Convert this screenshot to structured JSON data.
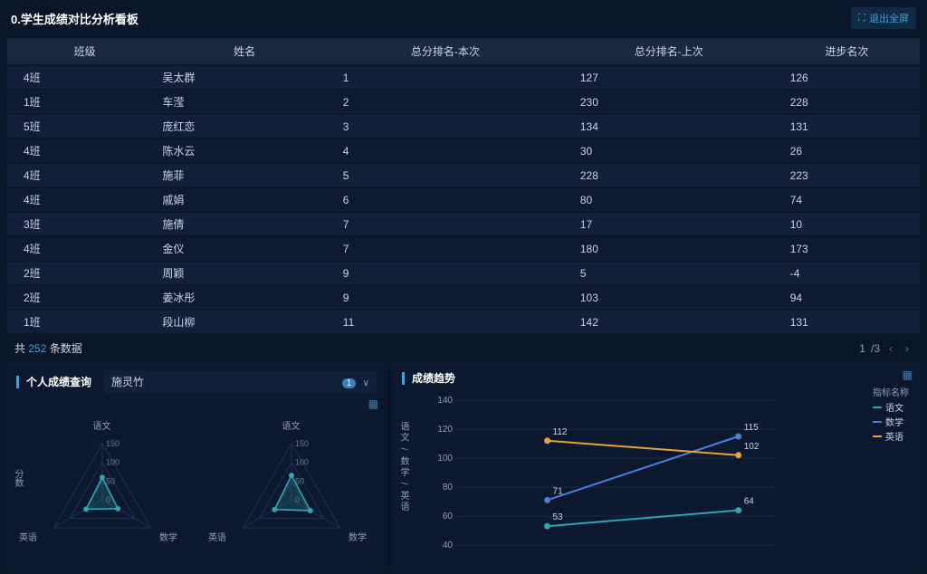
{
  "header": {
    "title": "0.学生成绩对比分析看板",
    "exit_label": "退出全屏"
  },
  "table": {
    "columns": [
      "班级",
      "姓名",
      "总分排名-本次",
      "总分排名-上次",
      "进步名次"
    ],
    "rows": [
      [
        "4班",
        "吴太群",
        "1",
        "127",
        "126"
      ],
      [
        "1班",
        "车滢",
        "2",
        "230",
        "228"
      ],
      [
        "5班",
        "庞红恋",
        "3",
        "134",
        "131"
      ],
      [
        "4班",
        "陈水云",
        "4",
        "30",
        "26"
      ],
      [
        "4班",
        "施菲",
        "5",
        "228",
        "223"
      ],
      [
        "4班",
        "戚娟",
        "6",
        "80",
        "74"
      ],
      [
        "3班",
        "施倩",
        "7",
        "17",
        "10"
      ],
      [
        "4班",
        "金仪",
        "7",
        "180",
        "173"
      ],
      [
        "2班",
        "周颖",
        "9",
        "5",
        "-4"
      ],
      [
        "2班",
        "姜冰彤",
        "9",
        "103",
        "94"
      ],
      [
        "1班",
        "段山柳",
        "11",
        "142",
        "131"
      ]
    ],
    "col_widths": [
      "17%",
      "18%",
      "26%",
      "23%",
      "16%"
    ],
    "header_bg": "#1a2940",
    "row_bg_odd": "#121f38",
    "row_bg_even": "#0f1a30"
  },
  "footer": {
    "count_prefix": "共 ",
    "count_value": "252",
    "count_suffix": " 条数据",
    "page_current": "1",
    "page_total": "/3"
  },
  "query_panel": {
    "title": "个人成绩查询",
    "selected": "施灵竹",
    "badge": "1",
    "y_axis_label": "分数"
  },
  "radar": {
    "axes": [
      "语文",
      "数学",
      "英语"
    ],
    "rings": [
      0,
      50,
      100,
      150
    ],
    "ring_color": "#1f3350",
    "left": {
      "values": [
        60,
        48,
        50
      ],
      "stroke": "#2fa5b0",
      "fill": "rgba(47,165,176,0.22)"
    },
    "right": {
      "values": [
        65,
        58,
        52
      ],
      "stroke": "#2fa5b0",
      "fill": "rgba(47,165,176,0.22)"
    },
    "label_color": "#8aa0bf",
    "tick_color": "#6a7c98"
  },
  "trend_panel": {
    "title": "成绩趋势",
    "legend_title": "指标名称",
    "series": [
      {
        "name": "语文",
        "color": "#2fa5b0",
        "points": [
          53,
          64
        ]
      },
      {
        "name": "数学",
        "color": "#4a7fd6",
        "points": [
          71,
          115
        ]
      },
      {
        "name": "英语",
        "color": "#e6a23c",
        "points": [
          112,
          102
        ]
      }
    ],
    "y_ticks": [
      40,
      60,
      80,
      100,
      120,
      140
    ],
    "y_min": 40,
    "y_max": 140,
    "y_axis_title": "语文 / 数学 / 英语",
    "grid_color": "#1a2a42",
    "axis_color": "#2a3c58",
    "point_labels": [
      [
        "53",
        "64"
      ],
      [
        "71",
        "115"
      ],
      [
        "112",
        "102"
      ]
    ]
  },
  "colors": {
    "background": "#0a1528",
    "panel_bg": "#0c182d",
    "accent": "#4a9ed6",
    "text": "#c8d4e7",
    "text_dim": "#8aa0bf"
  }
}
